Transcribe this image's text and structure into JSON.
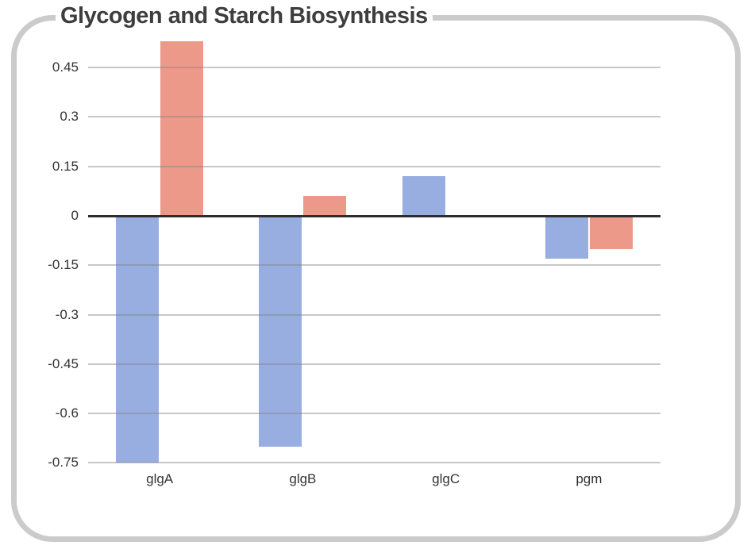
{
  "chart_data": {
    "type": "bar",
    "title": "Glycogen and Starch Biosynthesis",
    "categories": [
      "glgA",
      "glgB",
      "glgC",
      "pgm"
    ],
    "series": [
      {
        "name": "blue",
        "color": "#98aee1",
        "values": [
          -0.75,
          -0.7,
          0.12,
          -0.13
        ]
      },
      {
        "name": "salmon",
        "color": "#ec998a",
        "values": [
          0.53,
          0.06,
          null,
          -0.1
        ]
      }
    ],
    "yticks": [
      {
        "value": 0.45,
        "label": "0.45"
      },
      {
        "value": 0.3,
        "label": "0.3"
      },
      {
        "value": 0.15,
        "label": "0.15"
      },
      {
        "value": 0,
        "label": "0"
      },
      {
        "value": -0.15,
        "label": "-0.15"
      },
      {
        "value": -0.3,
        "label": "-0.3"
      },
      {
        "value": -0.45,
        "label": "-0.45"
      },
      {
        "value": -0.6,
        "label": "-0.6"
      },
      {
        "value": -0.75,
        "label": "-0.75"
      }
    ],
    "ylim": [
      -0.77,
      0.56
    ],
    "xlabel": "",
    "ylabel": "",
    "grid": true,
    "zero_line": true,
    "legend_position": "none"
  },
  "colors": {
    "bar_blue": "#98aee1",
    "bar_salmon": "#ec998a",
    "gridline": "#cdcdcd",
    "zero_line": "#2e2e2e",
    "frame_border": "#cbcbcb",
    "title_text": "#3e3e3e",
    "axis_text": "#333333",
    "background": "#ffffff"
  }
}
